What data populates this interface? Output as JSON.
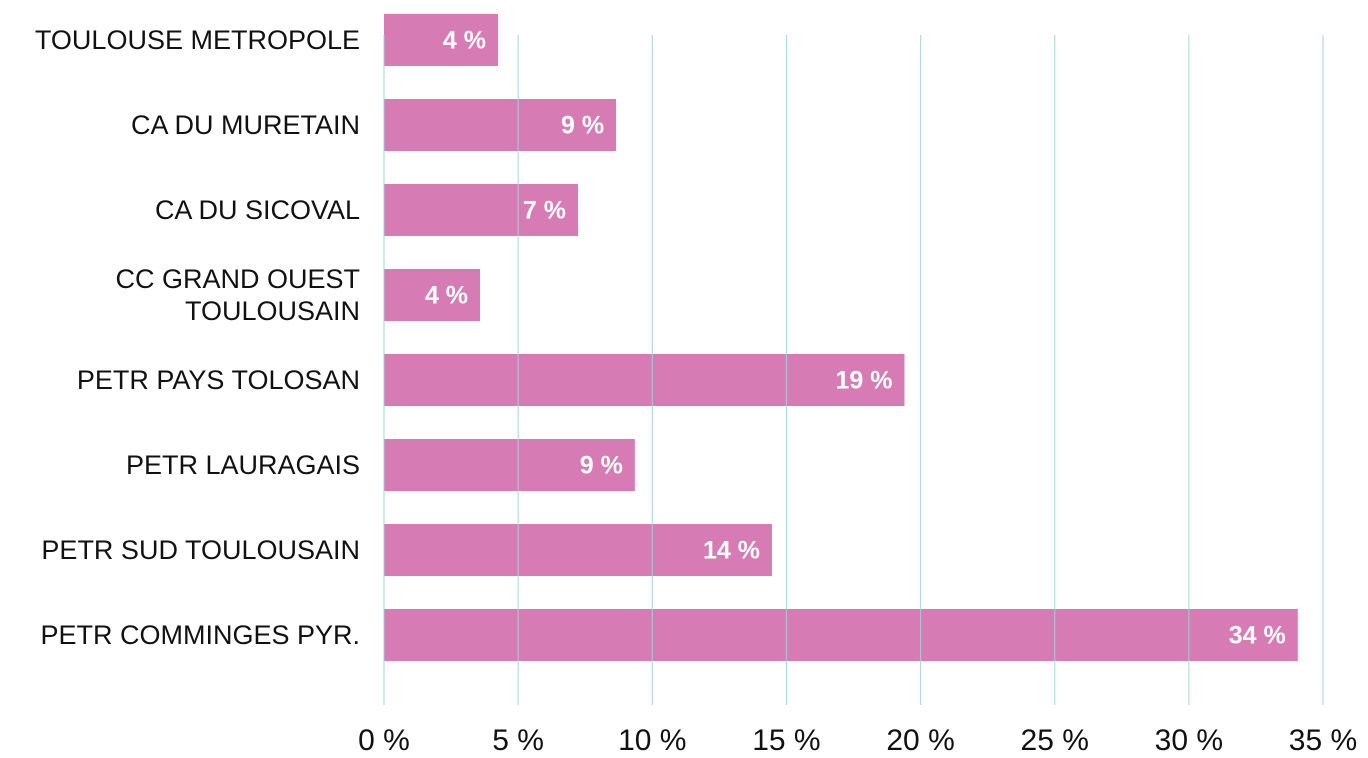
{
  "chart_data": {
    "type": "bar",
    "orientation": "horizontal",
    "categories": [
      "TOULOUSE METROPOLE",
      "CA DU MURETAIN",
      "CA DU SICOVAL",
      "CC GRAND OUEST TOULOUSAIN",
      "PETR PAYS TOLOSAN",
      "PETR LAURAGAIS",
      "PETR SUD TOULOUSAIN",
      "PETR COMMINGES PYR."
    ],
    "values": [
      4.25,
      8.65,
      7.23,
      3.58,
      19.4,
      9.35,
      14.46,
      34.06
    ],
    "value_labels": [
      "4 %",
      "9 %",
      "7 %",
      "4 %",
      "19 %",
      "9 %",
      "14 %",
      "34 %"
    ],
    "color": "#d67bb4",
    "xlim": [
      0,
      35
    ],
    "xticks": [
      {
        "value": 0,
        "label": "0 %"
      },
      {
        "value": 5,
        "label": "5 %"
      },
      {
        "value": 10,
        "label": "10 %"
      },
      {
        "value": 15,
        "label": "15 %"
      },
      {
        "value": 20,
        "label": "20 %"
      },
      {
        "value": 25,
        "label": "25 %"
      },
      {
        "value": 30,
        "label": "30 %"
      },
      {
        "value": 35,
        "label": "35 %"
      }
    ],
    "grid": true,
    "grid_color": "#9fd3dc"
  }
}
